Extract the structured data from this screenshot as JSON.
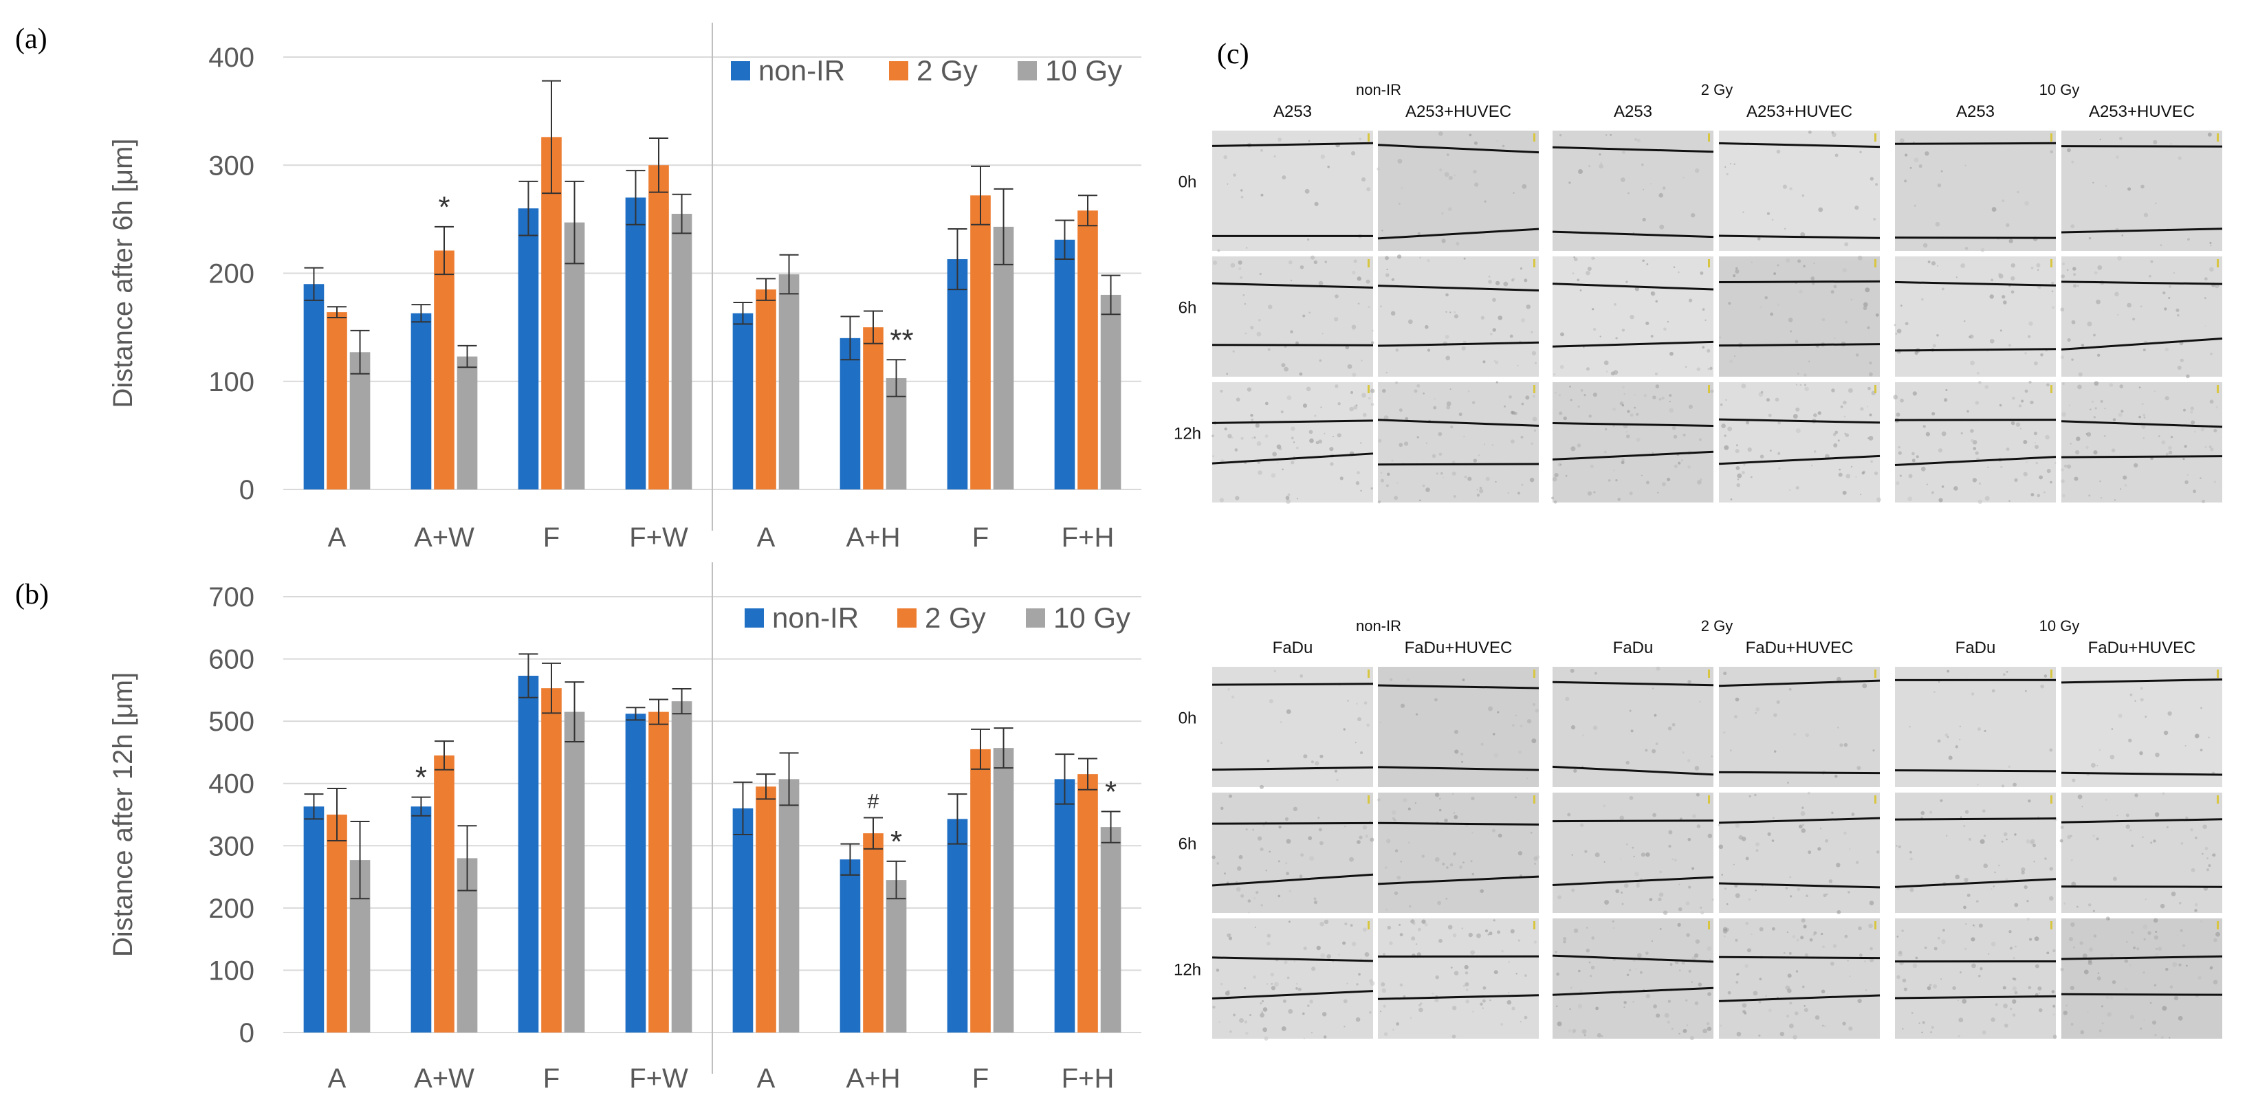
{
  "panel_labels": {
    "a": "(a)",
    "b": "(b)",
    "c": "(c)"
  },
  "colors": {
    "non_ir": "#1f6fc5",
    "gy2": "#ed7d31",
    "gy10": "#a5a5a5",
    "axis_text": "#595959",
    "grid": "#d9d9d9"
  },
  "chart_data": [
    {
      "type": "bar",
      "panel": "(a)",
      "ylabel": "Distance after 6h [μm]",
      "xlabel": "",
      "ylim": [
        0,
        400
      ],
      "yticks": [
        "0",
        "100",
        "200",
        "300",
        "400"
      ],
      "categories": [
        "A",
        "A+W",
        "F",
        "F+W",
        "A",
        "A+H",
        "F",
        "F+H"
      ],
      "legend": {
        "non_ir": "non-IR",
        "gy2": "2 Gy",
        "gy10": "10 Gy"
      },
      "series": [
        {
          "name": "non-IR",
          "values": [
            190,
            163,
            260,
            270,
            163,
            140,
            213,
            231
          ],
          "errors": [
            15,
            8,
            25,
            25,
            10,
            20,
            28,
            18
          ]
        },
        {
          "name": "2 Gy",
          "values": [
            164,
            221,
            326,
            300,
            185,
            150,
            272,
            258
          ],
          "errors": [
            5,
            22,
            52,
            25,
            10,
            15,
            27,
            14
          ]
        },
        {
          "name": "10 Gy",
          "values": [
            127,
            123,
            247,
            255,
            199,
            103,
            243,
            180
          ],
          "errors": [
            20,
            10,
            38,
            18,
            18,
            17,
            35,
            18
          ]
        }
      ],
      "annotations": [
        {
          "text": "*",
          "category_index": 1,
          "series": "2 Gy"
        },
        {
          "text": "**",
          "category_index": 5,
          "series": "10 Gy"
        }
      ]
    },
    {
      "type": "bar",
      "panel": "(b)",
      "ylabel": "Distance after 12h [μm]",
      "xlabel": "",
      "ylim": [
        0,
        700
      ],
      "yticks": [
        "0",
        "100",
        "200",
        "300",
        "400",
        "500",
        "600",
        "700"
      ],
      "categories": [
        "A",
        "A+W",
        "F",
        "F+W",
        "A",
        "A+H",
        "F",
        "F+H"
      ],
      "legend": {
        "non_ir": "non-IR",
        "gy2": "2 Gy",
        "gy10": "10 Gy"
      },
      "series": [
        {
          "name": "non-IR",
          "values": [
            363,
            363,
            573,
            512,
            360,
            278,
            343,
            407
          ],
          "errors": [
            20,
            15,
            35,
            10,
            42,
            25,
            40,
            40
          ]
        },
        {
          "name": "2 Gy",
          "values": [
            350,
            445,
            553,
            515,
            395,
            320,
            455,
            415
          ],
          "errors": [
            42,
            23,
            40,
            20,
            20,
            25,
            32,
            25
          ]
        },
        {
          "name": "10 Gy",
          "values": [
            277,
            280,
            515,
            532,
            407,
            245,
            457,
            330
          ],
          "errors": [
            62,
            52,
            48,
            20,
            42,
            30,
            32,
            25
          ]
        }
      ],
      "annotations": [
        {
          "text": "*",
          "category_index": 1,
          "series": "non-IR"
        },
        {
          "text": "#",
          "category_index": 5,
          "series": "2 Gy"
        },
        {
          "text": "*",
          "category_index": 5,
          "series": "10 Gy"
        },
        {
          "text": "*",
          "category_index": 7,
          "series": "10 Gy"
        }
      ]
    }
  ],
  "micrographs": {
    "top": {
      "doses": [
        "non-IR",
        "2 Gy",
        "10 Gy"
      ],
      "columns": [
        "A253",
        "A253+HUVEC",
        "A253",
        "A253+HUVEC",
        "A253",
        "A253+HUVEC"
      ],
      "rows": [
        "0h",
        "6h",
        "12h"
      ]
    },
    "bottom": {
      "doses": [
        "non-IR",
        "2 Gy",
        "10 Gy"
      ],
      "columns": [
        "FaDu",
        "FaDu+HUVEC",
        "FaDu",
        "FaDu+HUVEC",
        "FaDu",
        "FaDu+HUVEC"
      ],
      "rows": [
        "0h",
        "6h",
        "12h"
      ]
    }
  }
}
